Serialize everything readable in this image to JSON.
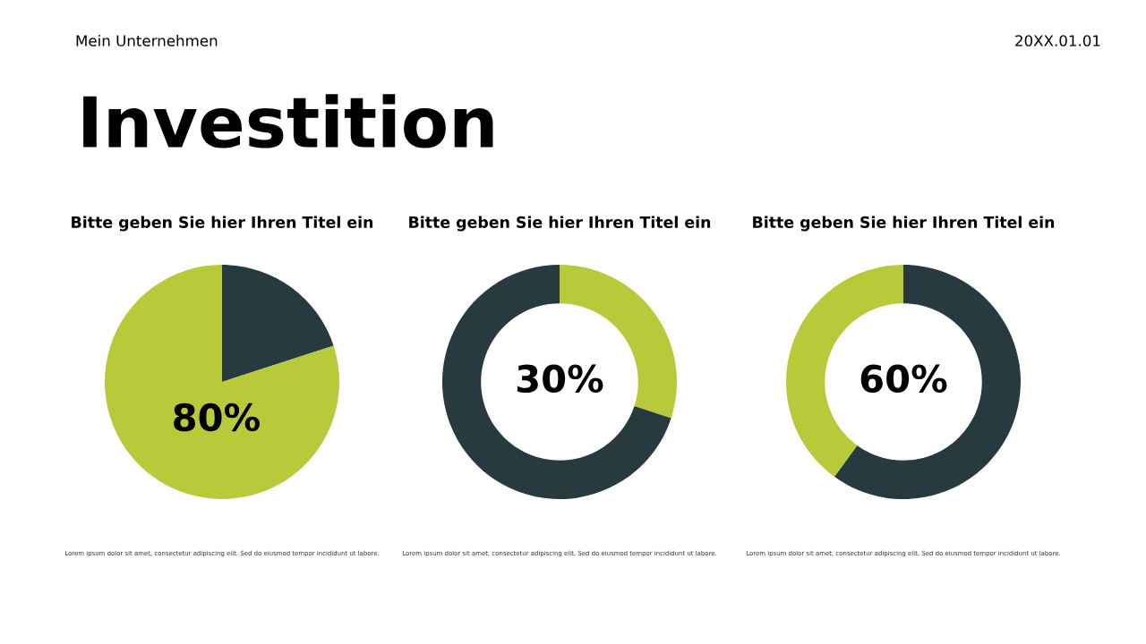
{
  "chart_data": [
    {
      "type": "pie",
      "title": "Bitte geben Sie hier Ihren Titel ein",
      "categories": [
        null,
        null
      ],
      "values": [
        20,
        80
      ],
      "colors": [
        "#263a3f",
        "#b8c93a"
      ],
      "value_labels": [
        null,
        "80%"
      ],
      "annotations": [
        "Mein Unternehmen",
        "20XX.01.01",
        "Investition",
        "Lorem ipsum dolor sit amet, consectetur adipiscing elit. Sed do eiusmod tempor incididunt ut labore."
      ]
    },
    {
      "type": "donut",
      "title": "Bitte geben Sie hier Ihren Titel ein",
      "categories": [
        null,
        null
      ],
      "values": [
        30,
        70
      ],
      "colors": [
        "#b8c93a",
        "#263a3f"
      ],
      "value_labels": [
        "30%",
        null
      ],
      "annotations": [
        "Lorem ipsum dolor sit amet, consectetur adipiscing elit. Sed do eiusmod tempor incididunt ut labore."
      ]
    },
    {
      "type": "donut",
      "title": "Bitte geben Sie hier Ihren Titel ein",
      "categories": [
        null,
        null
      ],
      "values": [
        60,
        40
      ],
      "colors": [
        "#263a3f",
        "#b8c93a"
      ],
      "value_labels": [
        "60%",
        null
      ],
      "annotations": [
        "Lorem ipsum dolor sit amet, consectetur adipiscing elit. Sed do eiusmod tempor incididunt ut labore."
      ]
    }
  ]
}
